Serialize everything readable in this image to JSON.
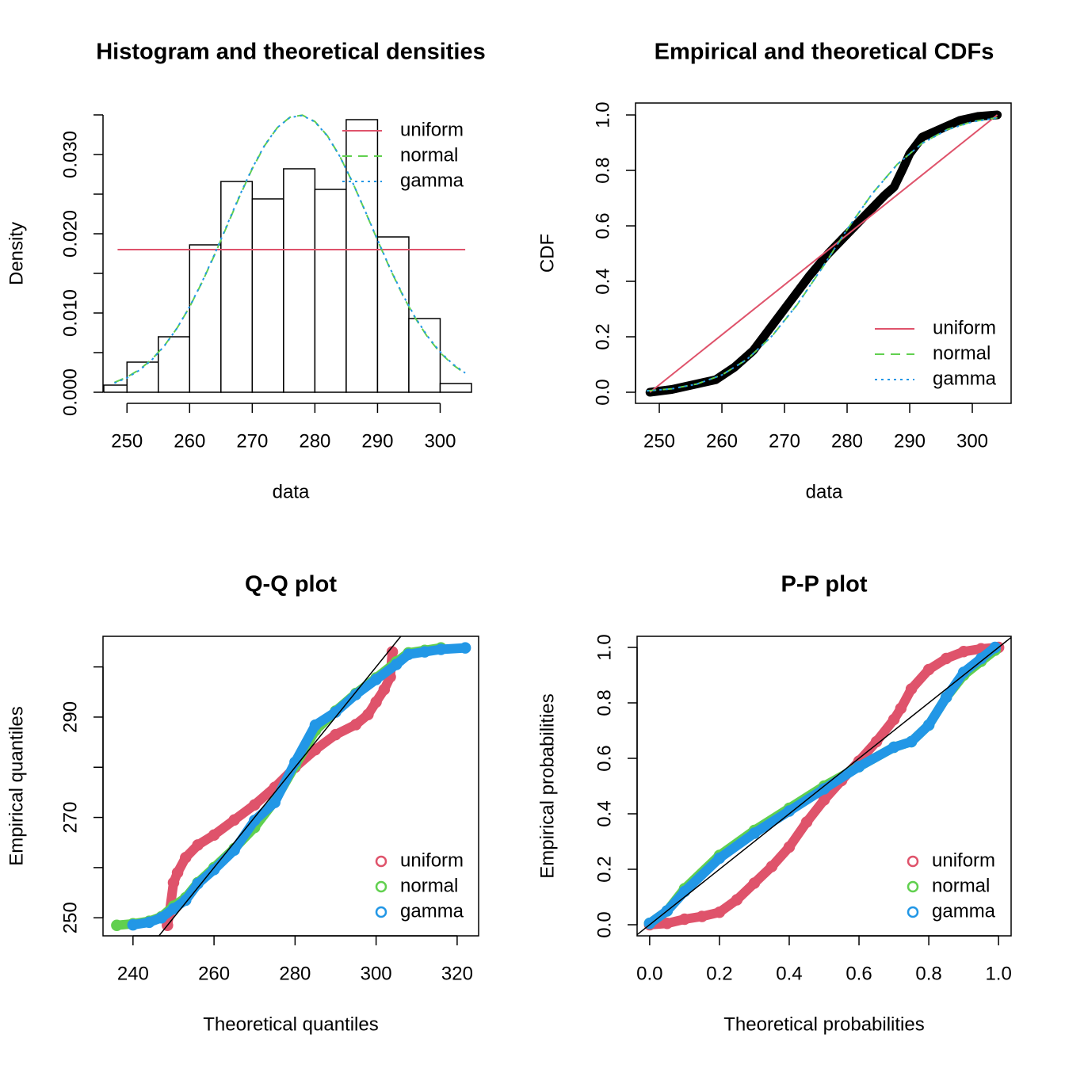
{
  "chart_data": [
    {
      "type": "histogram",
      "title": "Histogram and theoretical densities",
      "x_label": "data",
      "y_label": "Density",
      "bins": [
        246.3,
        250,
        255,
        260,
        265,
        270,
        275,
        280,
        285,
        290,
        295,
        300,
        305
      ],
      "counts": [
        0.0009,
        0.0038,
        0.007,
        0.0186,
        0.0266,
        0.0244,
        0.0282,
        0.0256,
        0.0344,
        0.0196,
        0.0093,
        0.0011
      ],
      "bar_color": "#ffffff",
      "series": [
        {
          "name": "uniform",
          "color": "#DF536B",
          "linestyle": "solid",
          "x": [
            248.5,
            304
          ],
          "values": [
            0.018,
            0.018
          ]
        },
        {
          "name": "normal",
          "color": "#61D04F",
          "linestyle": "dashed",
          "x": [
            248,
            250,
            252,
            254,
            256,
            258,
            260,
            262,
            264,
            266,
            268,
            270,
            272,
            274,
            276,
            278,
            280,
            282,
            284,
            286,
            288,
            290,
            292,
            294,
            296,
            298,
            300,
            302,
            304
          ],
          "values": [
            0.00123,
            0.00191,
            0.00287,
            0.00418,
            0.00591,
            0.0081,
            0.01077,
            0.01389,
            0.01736,
            0.02104,
            0.02474,
            0.02819,
            0.03115,
            0.03339,
            0.0347,
            0.03497,
            0.03417,
            0.03237,
            0.02975,
            0.02651,
            0.0229,
            0.01919,
            0.01559,
            0.01228,
            0.00938,
            0.00695,
            0.00499,
            0.00348,
            0.00235
          ]
        },
        {
          "name": "gamma",
          "color": "#2297E6",
          "linestyle": "dotted",
          "x": [
            248,
            250,
            252,
            254,
            256,
            258,
            260,
            262,
            264,
            266,
            268,
            270,
            272,
            274,
            276,
            278,
            280,
            282,
            284,
            286,
            288,
            290,
            292,
            294,
            296,
            298,
            300,
            302,
            304
          ],
          "values": [
            0.00115,
            0.00182,
            0.00279,
            0.00412,
            0.00588,
            0.0081,
            0.0108,
            0.01395,
            0.01745,
            0.02115,
            0.02485,
            0.02828,
            0.0312,
            0.0334,
            0.03467,
            0.03492,
            0.03412,
            0.03233,
            0.02973,
            0.02652,
            0.02293,
            0.01924,
            0.01566,
            0.01236,
            0.00947,
            0.00705,
            0.00509,
            0.00357,
            0.00243
          ]
        }
      ],
      "xlim": [
        246.3,
        305
      ],
      "ylim": [
        0,
        0.035
      ],
      "xticks": [
        250,
        260,
        270,
        280,
        290,
        300
      ],
      "yticks": [
        {
          "value": 0,
          "label": "0.000"
        },
        {
          "value": 0.01,
          "label": "0.010"
        },
        {
          "value": 0.02,
          "label": "0.020"
        },
        {
          "value": 0.03,
          "label": "0.030"
        }
      ],
      "yticks_minor": [
        0.005,
        0.015,
        0.025,
        0.035
      ],
      "legend": "topright"
    },
    {
      "type": "ecdf",
      "title": "Empirical and theoretical CDFs",
      "x_label": "data",
      "y_label": "CDF",
      "empirical": {
        "color": "#000000",
        "x": [
          248.5,
          252,
          256,
          259,
          262,
          265,
          268,
          271,
          274,
          277,
          280,
          283,
          286,
          287.5,
          289,
          290,
          292,
          295,
          298,
          301,
          304
        ],
        "values": [
          0,
          0.01,
          0.03,
          0.045,
          0.09,
          0.15,
          0.24,
          0.33,
          0.42,
          0.5,
          0.57,
          0.64,
          0.71,
          0.74,
          0.81,
          0.86,
          0.92,
          0.95,
          0.98,
          0.995,
          1
        ]
      },
      "series": [
        {
          "name": "uniform",
          "color": "#DF536B",
          "linestyle": "solid",
          "x": [
            248.5,
            304
          ],
          "values": [
            0,
            1
          ]
        },
        {
          "name": "normal",
          "color": "#61D04F",
          "linestyle": "dashed",
          "x": [
            248,
            252,
            256,
            260,
            264,
            268,
            272,
            276,
            280,
            284,
            288,
            292,
            296,
            300,
            304
          ],
          "values": [
            0.0048,
            0.0126,
            0.0297,
            0.0624,
            0.1182,
            0.2024,
            0.3149,
            0.4476,
            0.5867,
            0.7157,
            0.8215,
            0.8983,
            0.9477,
            0.9758,
            0.99
          ]
        },
        {
          "name": "gamma",
          "color": "#2297E6",
          "linestyle": "dotted",
          "x": [
            248,
            252,
            256,
            260,
            264,
            268,
            272,
            276,
            280,
            284,
            288,
            292,
            296,
            300,
            304
          ],
          "values": [
            0.0045,
            0.0122,
            0.0293,
            0.0622,
            0.1183,
            0.2028,
            0.3156,
            0.4484,
            0.5873,
            0.7158,
            0.8211,
            0.8975,
            0.9468,
            0.9749,
            0.9893
          ]
        }
      ],
      "xlim": [
        246.2,
        306.2
      ],
      "ylim": [
        -0.04,
        1.043
      ],
      "xticks": [
        250,
        260,
        270,
        280,
        290,
        300
      ],
      "yticks": [
        {
          "value": 0,
          "label": "0.0"
        },
        0.2,
        0.4,
        0.6,
        0.8,
        {
          "value": 1,
          "label": "1.0"
        }
      ],
      "legend": "bottomright"
    },
    {
      "type": "scatter",
      "title": "Q-Q plot",
      "x_label": "Theoretical quantiles",
      "y_label": "Empirical quantiles",
      "series": [
        {
          "name": "uniform",
          "color": "#DF536B",
          "x": [
            248.5,
            249,
            250,
            251,
            253,
            256,
            260,
            265,
            270,
            275,
            280,
            285,
            290,
            295,
            298,
            300,
            302,
            303.5,
            304
          ],
          "values": [
            248.5,
            251,
            257,
            259,
            262,
            264.5,
            266.5,
            269.5,
            272.5,
            276,
            280,
            283.5,
            286.5,
            288.5,
            290.5,
            293,
            295.5,
            298,
            303
          ]
        },
        {
          "name": "normal",
          "color": "#61D04F",
          "x": [
            236,
            240,
            244,
            247,
            250,
            253,
            256,
            260,
            265,
            270,
            275,
            280,
            285,
            290,
            295,
            300,
            305,
            308,
            312,
            316
          ],
          "values": [
            248.5,
            248.8,
            249.3,
            250.2,
            252.3,
            254,
            257,
            260,
            263.8,
            268,
            273.3,
            280.3,
            287.3,
            291.2,
            294.7,
            297.8,
            301,
            302.8,
            303.3,
            303.8
          ]
        },
        {
          "name": "gamma",
          "color": "#2297E6",
          "x": [
            240,
            244,
            247,
            250,
            253,
            256,
            260,
            265,
            270,
            275,
            280,
            285,
            290,
            295,
            300,
            305,
            308,
            312,
            316,
            322
          ],
          "values": [
            248.6,
            249.1,
            250,
            251.8,
            253.5,
            256.8,
            259.6,
            263.5,
            269.4,
            273,
            281,
            288.4,
            291,
            294.5,
            297.5,
            300.5,
            302.5,
            303,
            303.5,
            303.8
          ]
        }
      ],
      "xlim": [
        232.6,
        325.3
      ],
      "ylim": [
        246.4,
        306.1
      ],
      "xticks": [
        240,
        260,
        280,
        300,
        320
      ],
      "yticks": [
        250,
        270,
        290
      ],
      "yticks_minor": [
        260,
        280,
        300
      ],
      "diagonal": true,
      "legend": "bottomright"
    },
    {
      "type": "scatter",
      "title": "P-P plot",
      "x_label": "Theoretical probabilities",
      "y_label": "Empirical probabilities",
      "series": [
        {
          "name": "uniform",
          "color": "#DF536B",
          "x": [
            0,
            0.05,
            0.1,
            0.15,
            0.2,
            0.25,
            0.3,
            0.35,
            0.4,
            0.45,
            0.5,
            0.55,
            0.6,
            0.65,
            0.7,
            0.72,
            0.75,
            0.8,
            0.85,
            0.9,
            0.95,
            1
          ],
          "values": [
            0,
            0.005,
            0.02,
            0.03,
            0.045,
            0.09,
            0.15,
            0.21,
            0.28,
            0.37,
            0.45,
            0.52,
            0.59,
            0.66,
            0.74,
            0.78,
            0.85,
            0.92,
            0.96,
            0.985,
            0.995,
            1
          ]
        },
        {
          "name": "normal",
          "color": "#61D04F",
          "x": [
            0,
            0.05,
            0.1,
            0.2,
            0.3,
            0.4,
            0.5,
            0.6,
            0.7,
            0.75,
            0.8,
            0.85,
            0.9,
            0.95,
            0.99
          ],
          "values": [
            0.005,
            0.05,
            0.13,
            0.25,
            0.34,
            0.42,
            0.5,
            0.57,
            0.64,
            0.66,
            0.72,
            0.82,
            0.9,
            0.95,
            0.99
          ]
        },
        {
          "name": "gamma",
          "color": "#2297E6",
          "x": [
            0,
            0.05,
            0.1,
            0.2,
            0.3,
            0.4,
            0.5,
            0.6,
            0.7,
            0.75,
            0.8,
            0.85,
            0.9,
            0.95,
            0.99
          ],
          "values": [
            0.005,
            0.05,
            0.12,
            0.24,
            0.33,
            0.41,
            0.49,
            0.57,
            0.64,
            0.66,
            0.72,
            0.82,
            0.91,
            0.96,
            1
          ]
        }
      ],
      "xlim": [
        -0.036,
        1.036
      ],
      "ylim": [
        -0.04,
        1.04
      ],
      "xticks": [
        {
          "value": 0,
          "label": "0.0"
        },
        0.2,
        0.4,
        0.6,
        0.8,
        {
          "value": 1,
          "label": "1.0"
        }
      ],
      "yticks": [
        {
          "value": 0,
          "label": "0.0"
        },
        0.2,
        0.4,
        0.6,
        0.8,
        {
          "value": 1,
          "label": "1.0"
        }
      ],
      "diagonal": true,
      "legend": "bottomright"
    }
  ]
}
